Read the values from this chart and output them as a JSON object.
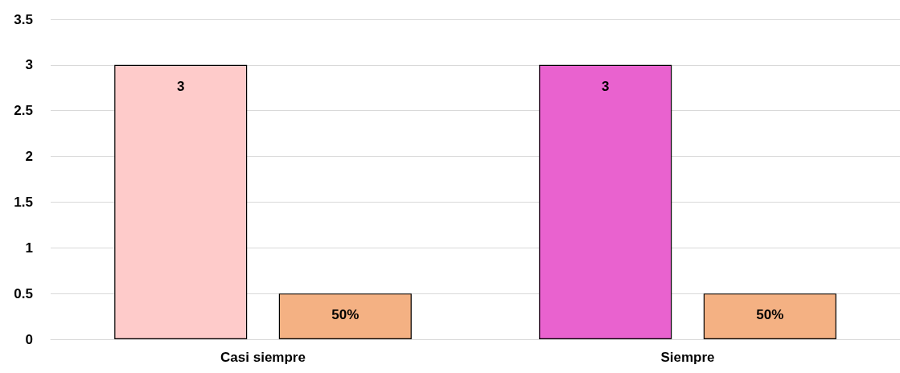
{
  "chart_data": {
    "type": "bar",
    "categories": [
      "Casi siempre",
      "Siempre"
    ],
    "series": [
      {
        "colors": [
          "#fecbca",
          "#e962cf"
        ],
        "values": [
          3,
          3
        ],
        "value_labels": [
          "3",
          "3"
        ]
      },
      {
        "color": "#f4b183",
        "values": [
          0.5,
          0.5
        ],
        "value_labels": [
          "50%",
          "50%"
        ]
      }
    ],
    "ylim": [
      0,
      3.5
    ],
    "yticks": [
      0,
      0.5,
      1,
      1.5,
      2,
      2.5,
      3,
      3.5
    ],
    "grid": "y"
  }
}
